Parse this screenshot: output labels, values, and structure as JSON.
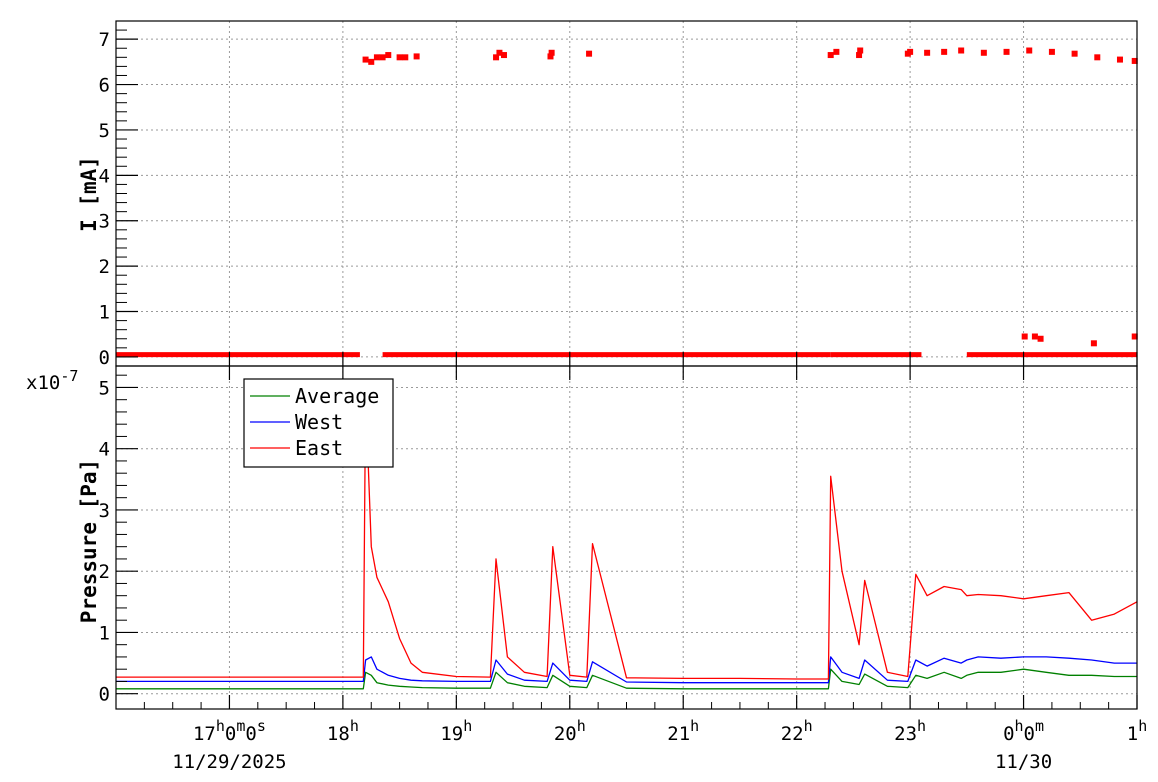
{
  "chart_data": [
    {
      "type": "scatter",
      "panel": "current",
      "ylabel": "I [mA]",
      "ylim": [
        -0.2,
        7.4
      ],
      "yticks": [
        "0",
        "1",
        "2",
        "3",
        "4",
        "5",
        "6",
        "7"
      ],
      "ytick_values": [
        0,
        1,
        2,
        3,
        4,
        5,
        6,
        7
      ],
      "grid": true,
      "color": "#ff0000",
      "segments": [
        {
          "x_start": 16.0,
          "x_end": 18.15,
          "value": 0.05
        },
        {
          "x_start": 18.35,
          "x_end": 22.3,
          "value": 0.05
        },
        {
          "x_start": 22.3,
          "x_end": 23.1,
          "value": 0.05
        },
        {
          "x_start": 23.5,
          "x_end": 25.0,
          "value": 0.05
        }
      ],
      "points": [
        {
          "x": 18.2,
          "y": 6.55
        },
        {
          "x": 18.25,
          "y": 6.5
        },
        {
          "x": 18.3,
          "y": 6.6
        },
        {
          "x": 18.35,
          "y": 6.6
        },
        {
          "x": 18.4,
          "y": 6.65
        },
        {
          "x": 18.5,
          "y": 6.6
        },
        {
          "x": 18.55,
          "y": 6.6
        },
        {
          "x": 18.65,
          "y": 6.62
        },
        {
          "x": 19.35,
          "y": 6.6
        },
        {
          "x": 19.38,
          "y": 6.7
        },
        {
          "x": 19.42,
          "y": 6.65
        },
        {
          "x": 19.83,
          "y": 6.62
        },
        {
          "x": 19.84,
          "y": 6.7
        },
        {
          "x": 20.17,
          "y": 6.68
        },
        {
          "x": 22.3,
          "y": 6.65
        },
        {
          "x": 22.35,
          "y": 6.72
        },
        {
          "x": 22.55,
          "y": 6.65
        },
        {
          "x": 22.56,
          "y": 6.75
        },
        {
          "x": 22.98,
          "y": 6.68
        },
        {
          "x": 23.0,
          "y": 6.72
        },
        {
          "x": 23.15,
          "y": 6.7
        },
        {
          "x": 23.3,
          "y": 6.72
        },
        {
          "x": 23.45,
          "y": 6.75
        },
        {
          "x": 23.65,
          "y": 6.7
        },
        {
          "x": 23.85,
          "y": 6.72
        },
        {
          "x": 24.05,
          "y": 6.75
        },
        {
          "x": 24.25,
          "y": 6.72
        },
        {
          "x": 24.45,
          "y": 6.68
        },
        {
          "x": 24.65,
          "y": 6.6
        },
        {
          "x": 24.85,
          "y": 6.55
        },
        {
          "x": 24.98,
          "y": 6.52
        },
        {
          "x": 24.01,
          "y": 0.45
        },
        {
          "x": 24.1,
          "y": 0.45
        },
        {
          "x": 24.15,
          "y": 0.4
        },
        {
          "x": 24.62,
          "y": 0.3
        },
        {
          "x": 24.98,
          "y": 0.45
        }
      ]
    },
    {
      "type": "line",
      "panel": "pressure",
      "ylabel": "Pressure [Pa]",
      "multiplier": "x10",
      "multiplier_exponent": "-7",
      "ylim": [
        -0.25,
        5.35
      ],
      "yticks": [
        "0",
        "1",
        "2",
        "3",
        "4",
        "5"
      ],
      "ytick_values": [
        0,
        1,
        2,
        3,
        4,
        5
      ],
      "grid": true,
      "legend_position": "top-left",
      "x": [
        16.0,
        18.18,
        18.2,
        18.25,
        18.3,
        18.4,
        18.5,
        18.6,
        18.7,
        19.0,
        19.3,
        19.35,
        19.45,
        19.6,
        19.8,
        19.85,
        20.0,
        20.15,
        20.2,
        20.5,
        21.0,
        21.5,
        22.0,
        22.28,
        22.3,
        22.4,
        22.55,
        22.6,
        22.8,
        22.98,
        23.05,
        23.15,
        23.3,
        23.45,
        23.5,
        23.6,
        23.8,
        24.0,
        24.2,
        24.4,
        24.6,
        24.8,
        25.0
      ],
      "series": [
        {
          "name": "Average",
          "color": "#008000",
          "values": [
            0.08,
            0.08,
            0.35,
            0.3,
            0.18,
            0.14,
            0.12,
            0.11,
            0.1,
            0.09,
            0.09,
            0.35,
            0.18,
            0.12,
            0.1,
            0.3,
            0.12,
            0.1,
            0.3,
            0.09,
            0.08,
            0.08,
            0.08,
            0.08,
            0.4,
            0.2,
            0.15,
            0.32,
            0.12,
            0.1,
            0.3,
            0.25,
            0.35,
            0.25,
            0.3,
            0.35,
            0.35,
            0.4,
            0.35,
            0.3,
            0.3,
            0.28,
            0.28
          ]
        },
        {
          "name": "West",
          "color": "#0000ff",
          "values": [
            0.2,
            0.2,
            0.55,
            0.6,
            0.4,
            0.3,
            0.25,
            0.22,
            0.21,
            0.2,
            0.2,
            0.55,
            0.32,
            0.22,
            0.2,
            0.5,
            0.22,
            0.2,
            0.52,
            0.19,
            0.18,
            0.18,
            0.18,
            0.18,
            0.6,
            0.35,
            0.25,
            0.55,
            0.22,
            0.2,
            0.55,
            0.45,
            0.58,
            0.5,
            0.55,
            0.6,
            0.58,
            0.6,
            0.6,
            0.58,
            0.55,
            0.5,
            0.5
          ]
        },
        {
          "name": "East",
          "color": "#ff0000",
          "values": [
            0.27,
            0.27,
            4.9,
            2.4,
            1.9,
            1.5,
            0.9,
            0.5,
            0.35,
            0.28,
            0.27,
            2.2,
            0.6,
            0.35,
            0.28,
            2.4,
            0.3,
            0.27,
            2.45,
            0.26,
            0.25,
            0.25,
            0.24,
            0.24,
            3.55,
            2.0,
            0.8,
            1.85,
            0.35,
            0.28,
            1.95,
            1.6,
            1.75,
            1.7,
            1.6,
            1.62,
            1.6,
            1.55,
            1.6,
            1.65,
            1.2,
            1.3,
            1.5
          ]
        }
      ]
    }
  ],
  "x_axis": {
    "xlim": [
      16.0,
      25.0
    ],
    "ticks": [
      {
        "value": 17,
        "text": "17",
        "sup": "h",
        "mid": "0",
        "sup2": "m",
        "mid2": "0",
        "sup3": "s"
      },
      {
        "value": 18,
        "text": "18",
        "sup": "h"
      },
      {
        "value": 19,
        "text": "19",
        "sup": "h"
      },
      {
        "value": 20,
        "text": "20",
        "sup": "h"
      },
      {
        "value": 21,
        "text": "21",
        "sup": "h"
      },
      {
        "value": 22,
        "text": "22",
        "sup": "h"
      },
      {
        "value": 23,
        "text": "23",
        "sup": "h"
      },
      {
        "value": 24,
        "text": "0",
        "sup": "h",
        "mid": "0",
        "sup2": "m"
      },
      {
        "value": 25,
        "text": "1",
        "sup": "h"
      }
    ],
    "date_labels": [
      {
        "value": 17,
        "text": "11/29/2025"
      },
      {
        "value": 24,
        "text": "11/30"
      }
    ]
  }
}
